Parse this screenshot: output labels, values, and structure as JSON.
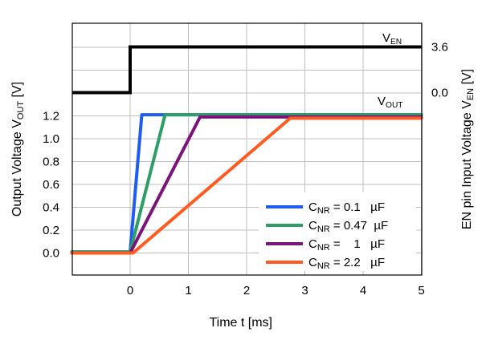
{
  "chart_data": {
    "type": "line",
    "xlabel": "Time t [ms]",
    "ylabel_left": "Output Voltage V_OUT [V]",
    "ylabel_right": "EN pin Input Voltage  V_EN [V]",
    "x_ticks": [
      "0",
      "1",
      "2",
      "3",
      "4",
      "5"
    ],
    "y_ticks_left": [
      "0.0",
      "0.2",
      "0.4",
      "0.6",
      "0.8",
      "1.0",
      "1.2"
    ],
    "y_ticks_right": [
      "0.0",
      "3.6"
    ],
    "xlim": [
      -1,
      5
    ],
    "ylim_left": [
      -0.2,
      2.0
    ],
    "grid": true,
    "legend_position": "bottom-right",
    "en_signal": {
      "label": "V_EN",
      "color": "#000000",
      "x": [
        -1,
        0,
        0,
        5
      ],
      "y": [
        0.0,
        0.0,
        3.6,
        3.6
      ]
    },
    "vout_label": "V_OUT",
    "series": [
      {
        "name": "C_NR = 0.1   µF",
        "color": "#1f5df2",
        "x": [
          -1,
          0,
          0.2,
          5
        ],
        "y": [
          0.01,
          0.01,
          1.21,
          1.21
        ]
      },
      {
        "name": "C_NR = 0.47  µF",
        "color": "#2e9d68",
        "x": [
          -1,
          0,
          0.6,
          5
        ],
        "y": [
          0.01,
          0.01,
          1.21,
          1.21
        ]
      },
      {
        "name": "C_NR =    1   µF",
        "color": "#7a137a",
        "x": [
          -1,
          0,
          1.2,
          5
        ],
        "y": [
          0.0,
          0.0,
          1.19,
          1.19
        ]
      },
      {
        "name": "C_NR = 2.2   µF",
        "color": "#ff5a1f",
        "x": [
          -1,
          0.05,
          2.75,
          5
        ],
        "y": [
          0.0,
          0.0,
          1.18,
          1.18
        ]
      }
    ]
  }
}
